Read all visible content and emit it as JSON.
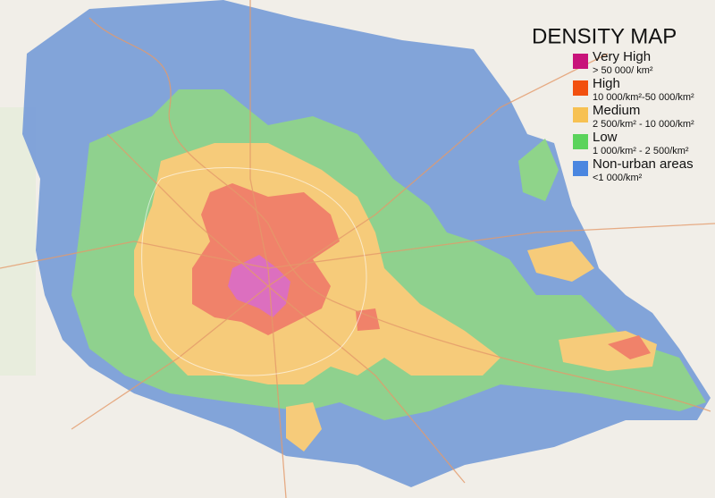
{
  "legend": {
    "title": "DENSITY MAP",
    "items": [
      {
        "label": "Very High",
        "description": "> 50 000/ km²",
        "color": "#c8137a"
      },
      {
        "label": "High",
        "description": "10 000/km²-50 000/km²",
        "color": "#f2500f"
      },
      {
        "label": "Medium",
        "description": "2 500/km² - 10 000/km²",
        "color": "#f7c152"
      },
      {
        "label": "Low",
        "description": "1 000/km² - 2 500/km²",
        "color": "#5bd35b"
      },
      {
        "label": "Non-urban areas",
        "description": "<1 000/km²",
        "color": "#4a86e0"
      }
    ]
  }
}
